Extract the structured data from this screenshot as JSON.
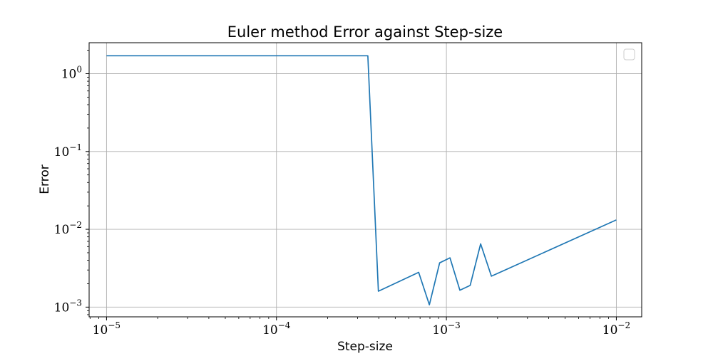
{
  "chart_data": {
    "type": "line",
    "title": "Euler method Error against Step-size",
    "xlabel": "Step-size",
    "ylabel": "Error",
    "xscale": "log",
    "yscale": "log",
    "xlim": [
      7.9e-06,
      0.0141
    ],
    "ylim": [
      0.00075,
      2.5
    ],
    "grid": true,
    "legend": "top-right, empty",
    "line_color": "#1f77b4",
    "xticks": [
      {
        "value": 1e-05,
        "base": "10",
        "exp": "−5"
      },
      {
        "value": 0.0001,
        "base": "10",
        "exp": "−4"
      },
      {
        "value": 0.001,
        "base": "10",
        "exp": "−3"
      },
      {
        "value": 0.01,
        "base": "10",
        "exp": "−2"
      }
    ],
    "yticks": [
      {
        "value": 0.001,
        "base": "10",
        "exp": "−3"
      },
      {
        "value": 0.01,
        "base": "10",
        "exp": "−2"
      },
      {
        "value": 0.1,
        "base": "10",
        "exp": "−1"
      },
      {
        "value": 1,
        "base": "10",
        "exp": "0"
      }
    ],
    "series": [
      {
        "x": [
          1e-05,
          0.000345,
          0.000398,
          0.000687,
          0.000794,
          0.000912,
          0.00105,
          0.0012,
          0.00138,
          0.00159,
          0.00184,
          0.01
        ],
        "y": [
          1.7,
          1.7,
          0.0016,
          0.0028,
          0.00107,
          0.0037,
          0.0043,
          0.00165,
          0.0019,
          0.0065,
          0.0025,
          0.0132
        ]
      }
    ]
  }
}
